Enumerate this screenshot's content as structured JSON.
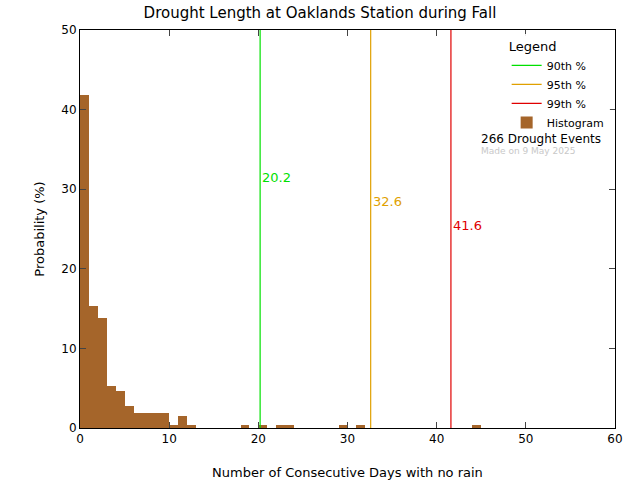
{
  "chart_data": {
    "type": "histogram",
    "title": "Drought Length at Oaklands Station during Fall",
    "x_label": "Number of Consecutive Days with no rain",
    "y_label": "Probability (%)",
    "legend_title": "Legend",
    "legend": "upper right",
    "grid": false,
    "bins": [
      0,
      1,
      2,
      3,
      4,
      5,
      6,
      7,
      8,
      9,
      10,
      11,
      12,
      13,
      14,
      15,
      16,
      17,
      18,
      19,
      20,
      21,
      22,
      23,
      24,
      25,
      26,
      27,
      28,
      29,
      30,
      31,
      32,
      33,
      34,
      35,
      36,
      37,
      38,
      39,
      40,
      41,
      42,
      43,
      44,
      45,
      46,
      47,
      48,
      49,
      50,
      51,
      52,
      53,
      54,
      55,
      56,
      57,
      58,
      59,
      60
    ],
    "series": [
      {
        "name": "Histogram",
        "type": "bar",
        "color": "#a5652a",
        "values": [
          41.8,
          15.3,
          13.8,
          5.3,
          4.6,
          2.8,
          1.9,
          1.9,
          1.9,
          1.9,
          0.4,
          1.5,
          0.4,
          0,
          0,
          0,
          0,
          0,
          0.38,
          0,
          0.38,
          0,
          0.38,
          0.38,
          0,
          0,
          0,
          0,
          0,
          0.38,
          0,
          0.38,
          0,
          0,
          0,
          0,
          0,
          0,
          0,
          0,
          0,
          0,
          0,
          0,
          0.38,
          0,
          0,
          0,
          0,
          0,
          0,
          0,
          0,
          0,
          0,
          0,
          0,
          0,
          0,
          0
        ]
      }
    ],
    "percentiles": [
      {
        "name": "90th %",
        "value": 20.2,
        "color": "#00e000"
      },
      {
        "name": "95th %",
        "value": 32.6,
        "color": "#e0a000"
      },
      {
        "name": "99th %",
        "value": 41.6,
        "color": "#e00000"
      }
    ],
    "annotations": [
      {
        "text": "266 Drought Events",
        "color": "#000000"
      },
      {
        "text": "Made on 9 May 2025",
        "color": "#c8c8c8"
      }
    ],
    "xlim": [
      0,
      60
    ],
    "xticks": [
      0,
      10,
      20,
      30,
      40,
      50,
      60
    ],
    "ylim": [
      0,
      50
    ],
    "yticks": [
      0,
      10,
      20,
      30,
      40,
      50
    ]
  }
}
